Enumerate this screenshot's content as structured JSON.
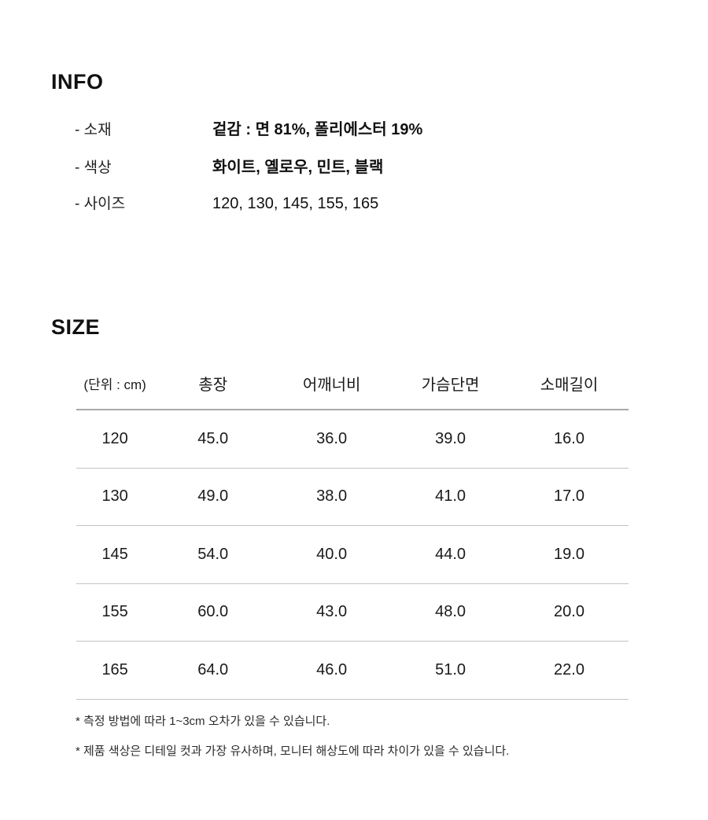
{
  "info": {
    "title": "INFO",
    "rows": [
      {
        "label": "- 소재",
        "value": "겉감 : 면 81%, 폴리에스터 19%"
      },
      {
        "label": "- 색상",
        "value": "화이트, 옐로우, 민트, 블랙"
      },
      {
        "label": "- 사이즈",
        "value": "120, 130, 145, 155, 165"
      }
    ]
  },
  "size": {
    "title": "SIZE",
    "table": {
      "headers": [
        "(단위 : cm)",
        "총장",
        "어깨너비",
        "가슴단면",
        "소매길이"
      ],
      "rows": [
        [
          "120",
          "45.0",
          "36.0",
          "39.0",
          "16.0"
        ],
        [
          "130",
          "49.0",
          "38.0",
          "41.0",
          "17.0"
        ],
        [
          "145",
          "54.0",
          "40.0",
          "44.0",
          "19.0"
        ],
        [
          "155",
          "60.0",
          "43.0",
          "48.0",
          "20.0"
        ],
        [
          "165",
          "64.0",
          "46.0",
          "51.0",
          "22.0"
        ]
      ]
    },
    "notes": [
      "* 측정 방법에 따라 1~3cm 오차가 있을 수 있습니다.",
      "* 제품 색상은 디테일 컷과 가장 유사하며, 모니터 해상도에 따라 차이가 있을 수 있습니다."
    ]
  },
  "colors": {
    "text": "#1a1a1a",
    "header_rule": "#a8a8a8",
    "row_rule": "#c3c3c3",
    "background": "#ffffff"
  }
}
